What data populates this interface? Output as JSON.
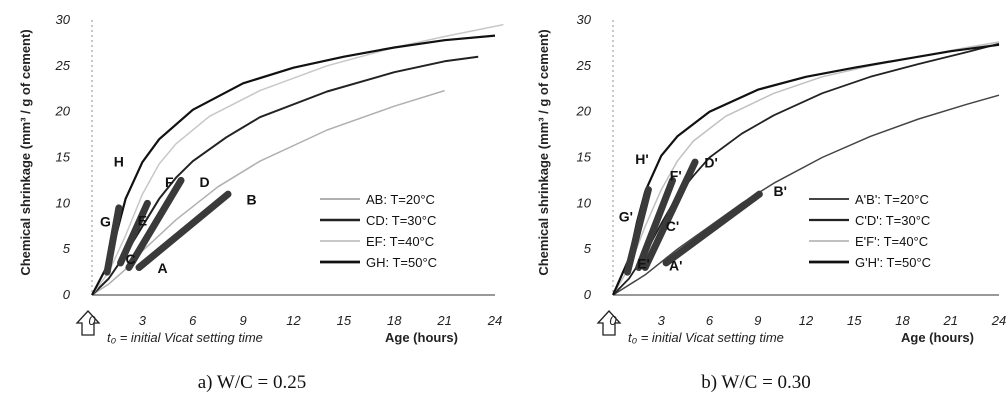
{
  "chart_data": [
    {
      "type": "line",
      "caption": "a) W/C = 0.25",
      "ylabel": "Chemical shrinkage (mm³ / g of cement)",
      "xlabel": "Age (hours)",
      "note": "t₀ = initial Vicat setting time",
      "xlim": [
        0,
        24
      ],
      "ylim": [
        0,
        30
      ],
      "x_ticks": [
        0,
        3,
        6,
        9,
        12,
        15,
        18,
        21,
        24
      ],
      "y_ticks": [
        0,
        5,
        10,
        15,
        20,
        25,
        30
      ],
      "series": [
        {
          "name": "AB: T=20°C",
          "color": "#b0b0b0",
          "width": 1.5,
          "x": [
            0,
            1,
            2,
            3,
            5,
            7.5,
            10,
            14,
            18,
            21
          ],
          "y": [
            0,
            1.2,
            2.8,
            4.8,
            8.2,
            11.8,
            14.6,
            18,
            20.6,
            22.3
          ]
        },
        {
          "name": "CD: T=30°C",
          "color": "#222222",
          "width": 2,
          "x": [
            0,
            1,
            2,
            3,
            4,
            5,
            6,
            8,
            10,
            14,
            18,
            21,
            23
          ],
          "y": [
            0,
            1.8,
            4.5,
            7.5,
            10.5,
            12.8,
            14.6,
            17.2,
            19.4,
            22.2,
            24.3,
            25.5,
            26
          ]
        },
        {
          "name": "EF: T=40°C",
          "color": "#c8c8c8",
          "width": 1.5,
          "x": [
            0,
            1,
            2,
            3,
            4,
            5,
            7,
            10,
            14,
            18,
            21,
            24.5
          ],
          "y": [
            0,
            2.5,
            6.5,
            11,
            14.3,
            16.5,
            19.5,
            22.3,
            25,
            27,
            28.2,
            29.5
          ]
        },
        {
          "name": "GH: T=50°C",
          "color": "#111111",
          "width": 2.2,
          "x": [
            0,
            1,
            1.5,
            2,
            3,
            4,
            6,
            9,
            12,
            15,
            18,
            21,
            24
          ],
          "y": [
            0,
            3.5,
            7,
            10.5,
            14.5,
            17,
            20.2,
            23.1,
            24.8,
            26,
            27,
            27.8,
            28.3
          ]
        }
      ],
      "segments": [
        {
          "x": [
            0.9,
            1.6
          ],
          "y": [
            2.5,
            9.5
          ]
        },
        {
          "x": [
            1.7,
            3.3
          ],
          "y": [
            3.5,
            10
          ]
        },
        {
          "x": [
            2.2,
            5.3
          ],
          "y": [
            3,
            12.5
          ]
        },
        {
          "x": [
            2.8,
            8.1
          ],
          "y": [
            3,
            11
          ]
        }
      ],
      "point_labels": [
        {
          "text": "H",
          "x": 1.6,
          "y": 14
        },
        {
          "text": "G",
          "x": 0.8,
          "y": 7.5
        },
        {
          "text": "F",
          "x": 4.6,
          "y": 11.8
        },
        {
          "text": "E",
          "x": 3,
          "y": 7.6
        },
        {
          "text": "D",
          "x": 6.7,
          "y": 11.8
        },
        {
          "text": "C",
          "x": 2.3,
          "y": 3.4
        },
        {
          "text": "B",
          "x": 9.5,
          "y": 9.9
        },
        {
          "text": "A",
          "x": 4.2,
          "y": 2.4
        }
      ],
      "legend_position": "right"
    },
    {
      "type": "line",
      "caption": "b) W/C = 0.30",
      "ylabel": "Chemical shrinkage (mm³ / g of cement)",
      "xlabel": "Age (hours)",
      "note": "t₀ = initial Vicat setting time",
      "xlim": [
        0,
        24
      ],
      "ylim": [
        0,
        30
      ],
      "x_ticks": [
        0,
        3,
        6,
        9,
        12,
        15,
        18,
        21,
        24
      ],
      "y_ticks": [
        0,
        5,
        10,
        15,
        20,
        25,
        30
      ],
      "series": [
        {
          "name": "A'B': T=20°C",
          "color": "#444444",
          "width": 1.5,
          "x": [
            0,
            2,
            4,
            6,
            8,
            10,
            13,
            16,
            19,
            22,
            24
          ],
          "y": [
            0,
            2.2,
            5,
            7.5,
            10,
            12.2,
            15,
            17.3,
            19.2,
            20.8,
            21.8
          ]
        },
        {
          "name": "C'D': T=30°C",
          "color": "#222222",
          "width": 1.8,
          "x": [
            0,
            1,
            2,
            3,
            4,
            5,
            6,
            8,
            10,
            13,
            16,
            19,
            22,
            24
          ],
          "y": [
            0,
            1.8,
            4.5,
            7.8,
            10.8,
            13,
            15,
            17.6,
            19.6,
            22,
            23.8,
            25.2,
            26.5,
            27.4
          ]
        },
        {
          "name": "E'F': T=40°C",
          "color": "#c0c0c0",
          "width": 1.5,
          "x": [
            0,
            1,
            2,
            3,
            4,
            5,
            7,
            10,
            13,
            16,
            19,
            22,
            24
          ],
          "y": [
            0,
            3,
            7.5,
            11.5,
            14.6,
            16.8,
            19.5,
            22,
            23.8,
            25,
            26,
            27,
            27.6
          ]
        },
        {
          "name": "G'H': T=50°C",
          "color": "#111111",
          "width": 2.2,
          "x": [
            0,
            1,
            1.5,
            2,
            3,
            4,
            6,
            9,
            12,
            15,
            18,
            21,
            24
          ],
          "y": [
            0,
            4,
            8,
            11.3,
            15.2,
            17.3,
            20,
            22.4,
            23.8,
            24.8,
            25.7,
            26.6,
            27.3
          ]
        }
      ],
      "segments": [
        {
          "x": [
            0.9,
            2.2
          ],
          "y": [
            2.5,
            11.5
          ]
        },
        {
          "x": [
            1.6,
            3.7
          ],
          "y": [
            3,
            12.5
          ]
        },
        {
          "x": [
            2,
            5.1
          ],
          "y": [
            3,
            14.5
          ]
        },
        {
          "x": [
            3.3,
            9.1
          ],
          "y": [
            3.5,
            11
          ]
        }
      ],
      "point_labels": [
        {
          "text": "H'",
          "x": 1.8,
          "y": 14.3
        },
        {
          "text": "G'",
          "x": 0.8,
          "y": 8
        },
        {
          "text": "F'",
          "x": 3.9,
          "y": 12.5
        },
        {
          "text": "E'",
          "x": 1.9,
          "y": 2.9
        },
        {
          "text": "D'",
          "x": 6.1,
          "y": 13.9
        },
        {
          "text": "C'",
          "x": 3.7,
          "y": 7
        },
        {
          "text": "B'",
          "x": 10.4,
          "y": 10.8
        },
        {
          "text": "A'",
          "x": 3.9,
          "y": 2.7
        }
      ],
      "legend_position": "right"
    }
  ]
}
